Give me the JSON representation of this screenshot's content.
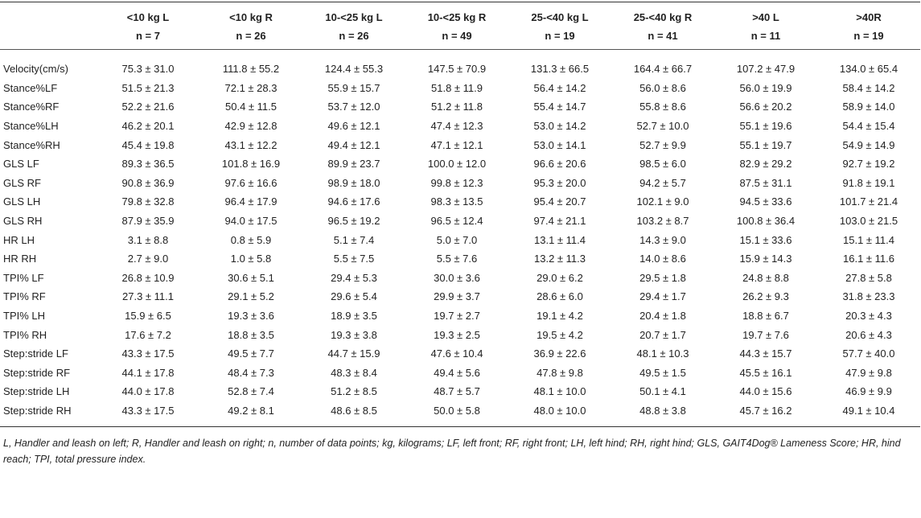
{
  "table": {
    "columns": [
      {
        "label": "<10 kg L",
        "n": "n = 7"
      },
      {
        "label": "<10 kg R",
        "n": "n = 26"
      },
      {
        "label": "10-<25 kg L",
        "n": "n = 26"
      },
      {
        "label": "10-<25 kg R",
        "n": "n = 49"
      },
      {
        "label": "25-<40 kg L",
        "n": "n = 19"
      },
      {
        "label": "25-<40 kg R",
        "n": "n = 41"
      },
      {
        "label": ">40 L",
        "n": "n = 11"
      },
      {
        "label": ">40R",
        "n": "n = 19"
      }
    ],
    "rows": [
      [
        "Velocity(cm/s)",
        "75.3 ± 31.0",
        "111.8 ± 55.2",
        "124.4 ± 55.3",
        "147.5 ± 70.9",
        "131.3 ± 66.5",
        "164.4 ± 66.7",
        "107.2 ± 47.9",
        "134.0 ± 65.4"
      ],
      [
        "Stance%LF",
        "51.5 ± 21.3",
        "72.1 ± 28.3",
        "55.9 ± 15.7",
        "51.8 ± 11.9",
        "56.4 ± 14.2",
        "56.0 ± 8.6",
        "56.0 ± 19.9",
        "58.4 ± 14.2"
      ],
      [
        "Stance%RF",
        "52.2 ± 21.6",
        "50.4 ± 11.5",
        "53.7 ± 12.0",
        "51.2 ± 11.8",
        "55.4 ± 14.7",
        "55.8 ± 8.6",
        "56.6 ± 20.2",
        "58.9 ± 14.0"
      ],
      [
        "Stance%LH",
        "46.2 ± 20.1",
        "42.9 ± 12.8",
        "49.6 ± 12.1",
        "47.4 ± 12.3",
        "53.0 ± 14.2",
        "52.7 ± 10.0",
        "55.1 ± 19.6",
        "54.4 ± 15.4"
      ],
      [
        "Stance%RH",
        "45.4 ± 19.8",
        "43.1 ± 12.2",
        "49.4 ± 12.1",
        "47.1 ± 12.1",
        "53.0 ± 14.1",
        "52.7 ± 9.9",
        "55.1 ± 19.7",
        "54.9 ± 14.9"
      ],
      [
        "GLS LF",
        "89.3 ± 36.5",
        "101.8 ± 16.9",
        "89.9 ± 23.7",
        "100.0 ± 12.0",
        "96.6 ± 20.6",
        "98.5 ± 6.0",
        "82.9 ± 29.2",
        "92.7 ± 19.2"
      ],
      [
        "GLS RF",
        "90.8 ± 36.9",
        "97.6 ± 16.6",
        "98.9 ± 18.0",
        "99.8 ± 12.3",
        "95.3 ± 20.0",
        "94.2 ± 5.7",
        "87.5 ± 31.1",
        "91.8 ± 19.1"
      ],
      [
        "GLS LH",
        "79.8 ± 32.8",
        "96.4 ± 17.9",
        "94.6 ± 17.6",
        "98.3 ± 13.5",
        "95.4 ± 20.7",
        "102.1 ± 9.0",
        "94.5 ± 33.6",
        "101.7 ± 21.4"
      ],
      [
        "GLS RH",
        "87.9 ± 35.9",
        "94.0 ± 17.5",
        "96.5 ± 19.2",
        "96.5 ± 12.4",
        "97.4 ± 21.1",
        "103.2 ± 8.7",
        "100.8 ± 36.4",
        "103.0 ± 21.5"
      ],
      [
        "HR LH",
        "3.1 ± 8.8",
        "0.8 ± 5.9",
        "5.1 ± 7.4",
        "5.0 ± 7.0",
        "13.1 ± 11.4",
        "14.3 ± 9.0",
        "15.1 ± 33.6",
        "15.1 ± 11.4"
      ],
      [
        "HR RH",
        "2.7 ± 9.0",
        "1.0 ± 5.8",
        "5.5 ± 7.5",
        "5.5 ± 7.6",
        "13.2 ± 11.3",
        "14.0 ± 8.6",
        "15.9 ± 14.3",
        "16.1 ± 11.6"
      ],
      [
        "TPI% LF",
        "26.8 ± 10.9",
        "30.6 ± 5.1",
        "29.4 ± 5.3",
        "30.0 ± 3.6",
        "29.0 ± 6.2",
        "29.5 ± 1.8",
        "24.8 ± 8.8",
        "27.8 ± 5.8"
      ],
      [
        "TPI% RF",
        "27.3 ± 11.1",
        "29.1 ± 5.2",
        "29.6 ± 5.4",
        "29.9 ± 3.7",
        "28.6 ± 6.0",
        "29.4 ± 1.7",
        "26.2 ± 9.3",
        "31.8 ± 23.3"
      ],
      [
        "TPI% LH",
        "15.9 ± 6.5",
        "19.3 ± 3.6",
        "18.9 ± 3.5",
        "19.7 ± 2.7",
        "19.1 ± 4.2",
        "20.4 ± 1.8",
        "18.8 ± 6.7",
        "20.3 ± 4.3"
      ],
      [
        "TPI% RH",
        "17.6 ± 7.2",
        "18.8 ± 3.5",
        "19.3 ± 3.8",
        "19.3 ± 2.5",
        "19.5 ± 4.2",
        "20.7 ± 1.7",
        "19.7 ± 7.6",
        "20.6 ± 4.3"
      ],
      [
        "Step:stride LF",
        "43.3 ± 17.5",
        "49.5 ± 7.7",
        "44.7 ± 15.9",
        "47.6 ± 10.4",
        "36.9 ± 22.6",
        "48.1 ± 10.3",
        "44.3 ± 15.7",
        "57.7 ± 40.0"
      ],
      [
        "Step:stride RF",
        "44.1 ± 17.8",
        "48.4 ± 7.3",
        "48.3 ± 8.4",
        "49.4 ± 5.6",
        "47.8 ± 9.8",
        "49.5 ± 1.5",
        "45.5 ± 16.1",
        "47.9 ± 9.8"
      ],
      [
        "Step:stride LH",
        "44.0 ± 17.8",
        "52.8 ± 7.4",
        "51.2 ± 8.5",
        "48.7 ± 5.7",
        "48.1 ± 10.0",
        "50.1 ± 4.1",
        "44.0 ± 15.6",
        "46.9 ± 9.9"
      ],
      [
        "Step:stride RH",
        "43.3 ± 17.5",
        "49.2 ± 8.1",
        "48.6 ± 8.5",
        "50.0 ± 5.8",
        "48.0 ± 10.0",
        "48.8 ± 3.8",
        "45.7 ± 16.2",
        "49.1 ± 10.4"
      ]
    ],
    "footnote": "L, Handler and leash on left; R, Handler and leash on right; n, number of data points; kg, kilograms; LF, left front; RF, right front; LH, left hind; RH, right hind; GLS, GAIT4Dog® Lameness Score; HR, hind reach; TPI, total pressure index."
  }
}
